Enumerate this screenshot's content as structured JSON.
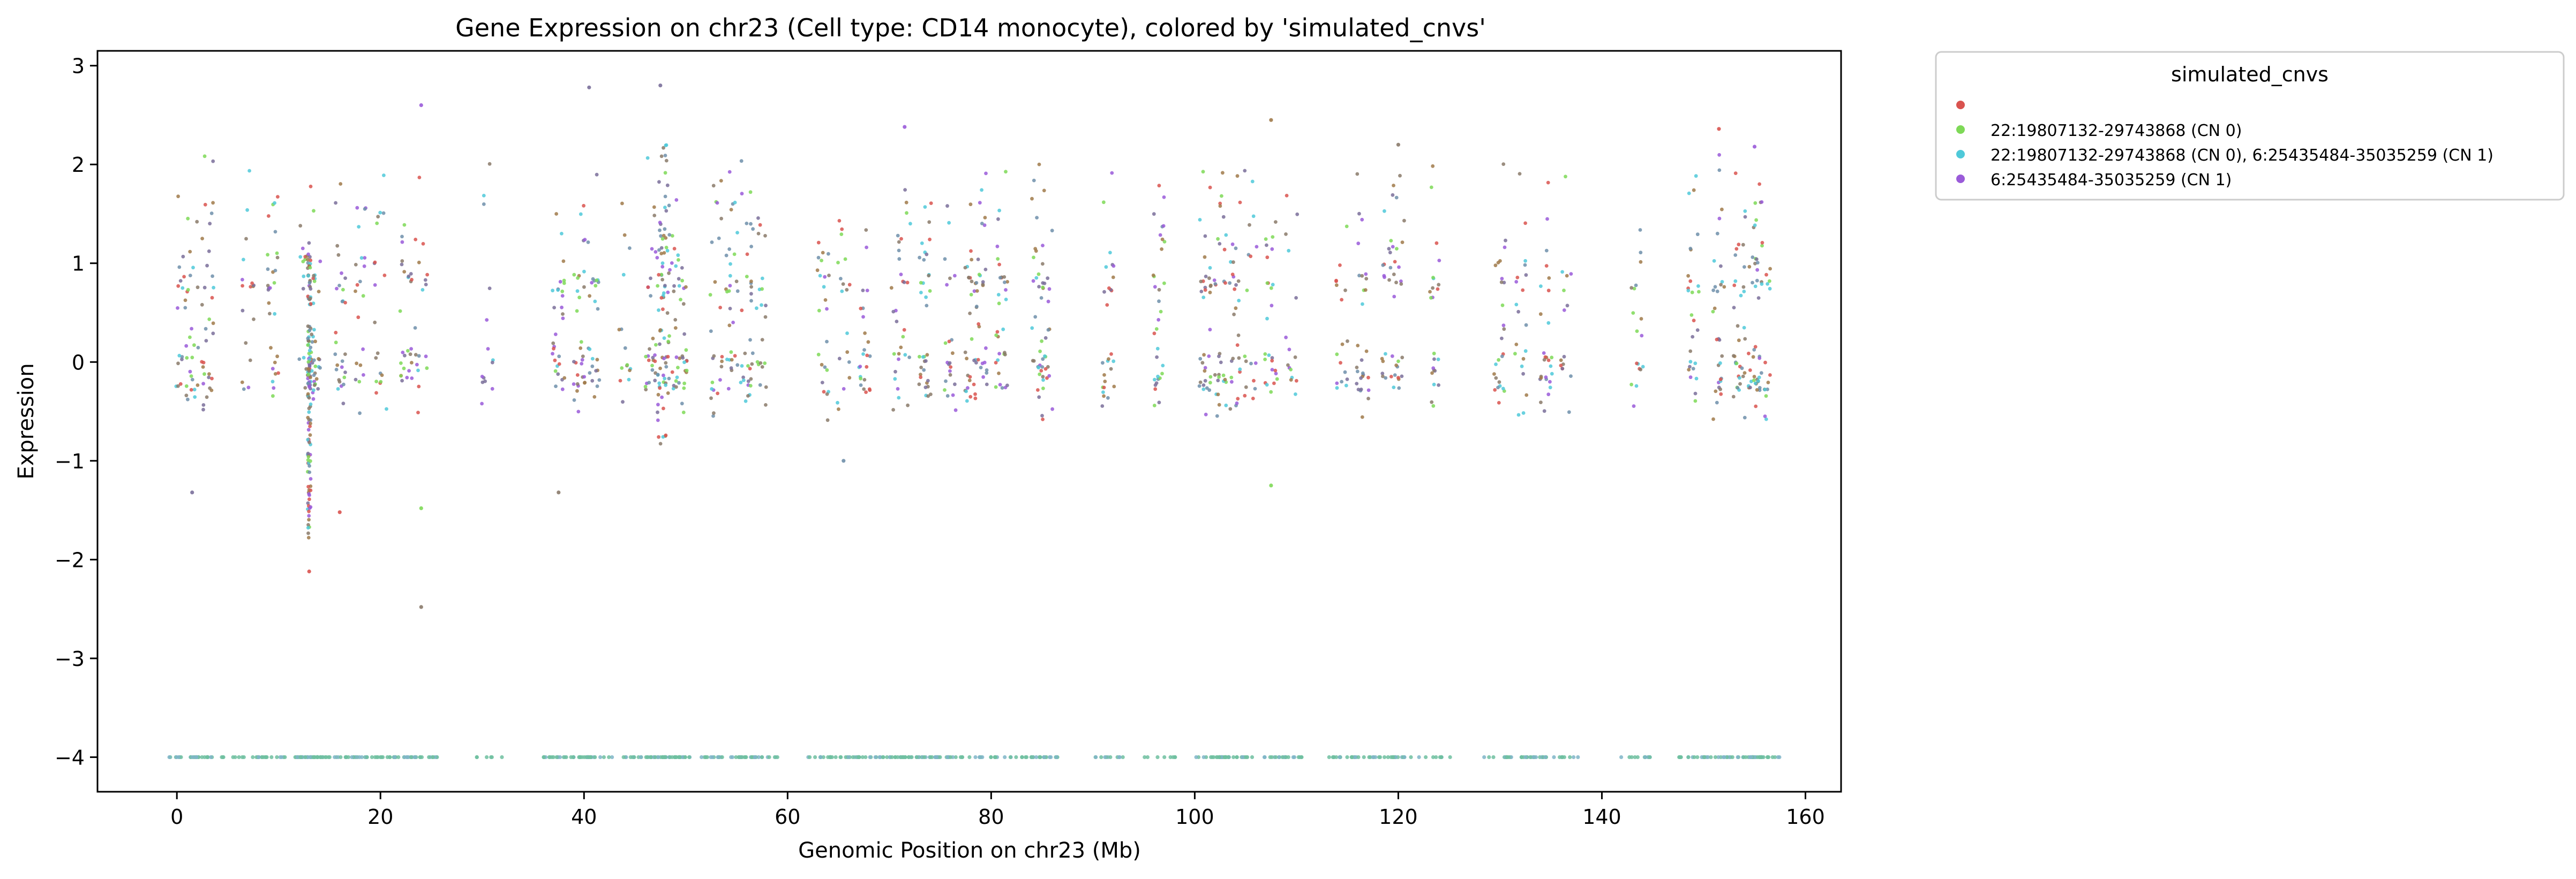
{
  "chart_data": {
    "type": "scatter",
    "title": "Gene Expression on chr23 (Cell type: CD14 monocyte), colored by 'simulated_cnvs'",
    "xlabel": "Genomic Position on chr23 (Mb)",
    "ylabel": "Expression",
    "xlim": [
      -7.8,
      163.5
    ],
    "ylim": [
      -4.35,
      3.15
    ],
    "xticks": [
      0,
      20,
      40,
      60,
      80,
      100,
      120,
      140,
      160
    ],
    "yticks": [
      -4,
      -3,
      -2,
      -1,
      0,
      1,
      2,
      3
    ],
    "grid": false,
    "legend": {
      "title": "simulated_cnvs",
      "placement": "outside-top-right",
      "entries": [
        {
          "label": "",
          "color": "#d9534f"
        },
        {
          "label": "22:19807132-29743868 (CN 0)",
          "color": "#7ed957"
        },
        {
          "label": "22:19807132-29743868 (CN 0), 6:25435484-35035259 (CN 1)",
          "color": "#4fc9d9"
        },
        {
          "label": "6:25435484-35035259 (CN 1)",
          "color": "#9a5bd9"
        }
      ]
    },
    "clusters_mb": [
      0.5,
      1.5,
      3.0,
      7.0,
      9.5,
      12.5,
      13.0,
      13.5,
      16.0,
      18.0,
      20.0,
      22.5,
      24.0,
      30.5,
      37.5,
      39.5,
      41.0,
      44.0,
      46.5,
      47.5,
      48.5,
      49.5,
      53.0,
      54.5,
      56.0,
      57.5,
      63.5,
      65.5,
      67.5,
      70.5,
      71.5,
      73.5,
      76.0,
      78.0,
      79.0,
      81.0,
      84.5,
      85.5,
      91.5,
      96.5,
      101.0,
      102.5,
      104.0,
      105.5,
      107.5,
      109.5,
      114.5,
      116.5,
      119.0,
      120.0,
      123.5,
      130.0,
      132.0,
      134.5,
      136.5,
      143.5,
      149.0,
      151.5,
      153.5,
      155.0,
      156.0
    ],
    "levels": [
      -0.2,
      0.0,
      0.8,
      1.3
    ],
    "baseline": -4.0,
    "special_points": [
      {
        "x": 13.0,
        "y": -2.12
      },
      {
        "x": 24.0,
        "y": -2.48
      },
      {
        "x": 107.5,
        "y": -1.25
      },
      {
        "x": 1.5,
        "y": -1.32
      },
      {
        "x": 37.5,
        "y": -1.32
      },
      {
        "x": 65.5,
        "y": -1.0
      },
      {
        "x": 16.0,
        "y": -1.52
      },
      {
        "x": 24.0,
        "y": -1.48
      },
      {
        "x": 40.5,
        "y": 2.78
      },
      {
        "x": 47.5,
        "y": 2.8
      },
      {
        "x": 24.0,
        "y": 2.6
      },
      {
        "x": 107.5,
        "y": 2.45
      },
      {
        "x": 151.5,
        "y": 2.36
      },
      {
        "x": 71.5,
        "y": 2.38
      },
      {
        "x": 120.0,
        "y": 2.2
      },
      {
        "x": 155.0,
        "y": 2.18
      }
    ]
  }
}
